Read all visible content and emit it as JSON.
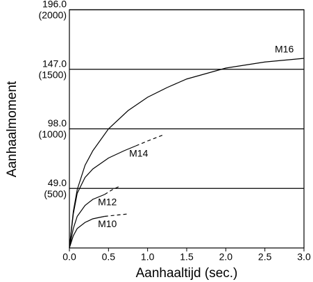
{
  "chart_data": {
    "type": "line",
    "x_label": "Aanhaaltijd (sec.)",
    "y_label": "Aanhaalmoment",
    "xlim": [
      0,
      3.0
    ],
    "ylim": [
      0,
      196
    ],
    "xticks": [
      {
        "value": 0,
        "label": "0.0"
      },
      0.5,
      {
        "value": 1,
        "label": "1.0"
      },
      1.5,
      {
        "value": 2,
        "label": "2.0"
      },
      2.5,
      {
        "value": 3,
        "label": "3.0"
      }
    ],
    "yticks": [
      {
        "value": 49,
        "label": "49.0"
      },
      {
        "value": 98,
        "label": "98.0"
      },
      {
        "value": 147,
        "label": "147.0"
      },
      {
        "value": 196,
        "label": "196.0"
      }
    ],
    "y_secondary_tick_labels": [
      "(500)",
      "(1000)",
      "(1500)",
      "(2000)"
    ],
    "grid": true,
    "series": [
      {
        "name": "M16",
        "color": "#000000",
        "x": [
          0,
          0.05,
          0.1,
          0.2,
          0.3,
          0.5,
          0.75,
          1.0,
          1.25,
          1.5,
          2.0,
          2.5,
          3.0
        ],
        "values": [
          0,
          30,
          48,
          68,
          80,
          98,
          113,
          124,
          132,
          139,
          148,
          153,
          156
        ]
      },
      {
        "name": "M14",
        "color": "#000000",
        "dashed_after": 0.85,
        "x": [
          0,
          0.05,
          0.1,
          0.2,
          0.3,
          0.5,
          0.7,
          0.85,
          1.0,
          1.2
        ],
        "values": [
          0,
          28,
          45,
          58,
          65,
          74,
          80,
          84,
          88,
          93
        ]
      },
      {
        "name": "M12",
        "color": "#000000",
        "dashed_after": 0.45,
        "x": [
          0,
          0.05,
          0.1,
          0.2,
          0.3,
          0.45,
          0.55,
          0.65
        ],
        "values": [
          0,
          16,
          26,
          35,
          40,
          44,
          48,
          51
        ]
      },
      {
        "name": "M10",
        "color": "#000000",
        "dashed_after": 0.45,
        "x": [
          0,
          0.05,
          0.1,
          0.2,
          0.3,
          0.45,
          0.6,
          0.75
        ],
        "values": [
          0,
          10,
          16,
          21,
          24,
          26,
          27,
          28
        ]
      }
    ]
  }
}
